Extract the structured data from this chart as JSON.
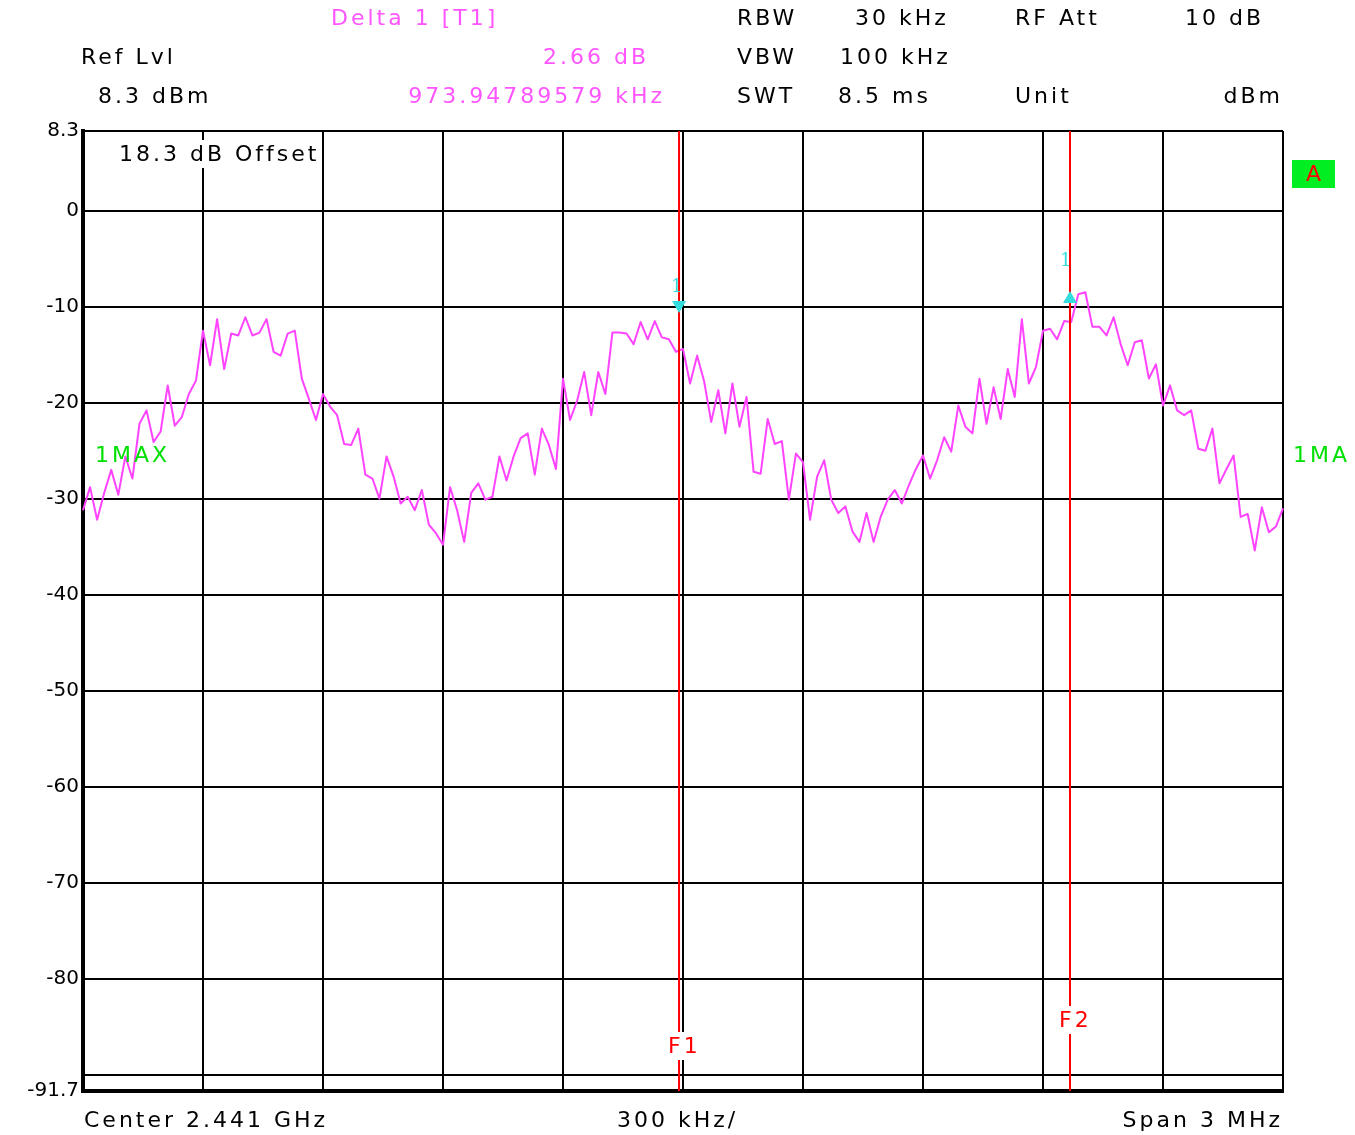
{
  "chart_data": {
    "type": "line",
    "categories": [
      null,
      null,
      null,
      null,
      null,
      null,
      null,
      null,
      null,
      null,
      null,
      null,
      null,
      null,
      null,
      null,
      null,
      null,
      null,
      null,
      null,
      null,
      null,
      null,
      null,
      null,
      null,
      null,
      null,
      null,
      null,
      null,
      null,
      null,
      null,
      null,
      null,
      null,
      null,
      null,
      null,
      null,
      null,
      null,
      null,
      null,
      null,
      null,
      null,
      null,
      null,
      null,
      null,
      null,
      null,
      null,
      null,
      null,
      null,
      null,
      null,
      null,
      null,
      null,
      null,
      null,
      null,
      null,
      null,
      null,
      null,
      null,
      null,
      null,
      null,
      null,
      null,
      null,
      null,
      null,
      null,
      null,
      null,
      null,
      null,
      null,
      null,
      null,
      null,
      null,
      null,
      null,
      null,
      null,
      null,
      null,
      null,
      null,
      null,
      null,
      null,
      null,
      null,
      null,
      null,
      null,
      null,
      null,
      null,
      null,
      null,
      null,
      null,
      null,
      null,
      null,
      null,
      null,
      null,
      null,
      null,
      null,
      null,
      null,
      null,
      null,
      null,
      null,
      null,
      null,
      null,
      null,
      null,
      null,
      null,
      null,
      null,
      null,
      null,
      null,
      null,
      null,
      null,
      null,
      null,
      null,
      null,
      null,
      null,
      null,
      null,
      null,
      null,
      null,
      null,
      null,
      null,
      null,
      null,
      null,
      null,
      null,
      null,
      null,
      null,
      null,
      null,
      null,
      null,
      null,
      null
    ],
    "series": [
      {
        "color": "#ff44ff",
        "values": [
          -31.2,
          -28.8,
          -32.2,
          -29.4,
          -27,
          -29.6,
          -25.6,
          -27.9,
          -22.2,
          -20.8,
          -24.1,
          -23,
          -18.2,
          -22.4,
          -21.5,
          -19.1,
          -17.7,
          -12.5,
          -16.1,
          -11.3,
          -16.5,
          -12.8,
          -13,
          -11.1,
          -13,
          -12.7,
          -11.3,
          -14.7,
          -15.1,
          -12.8,
          -12.5,
          -17.5,
          -19.6,
          -21.8,
          -19.1,
          -20.4,
          -21.3,
          -24.3,
          -24.4,
          -22.7,
          -27.5,
          -27.9,
          -30,
          -25.6,
          -27.7,
          -30.5,
          -29.8,
          -31.2,
          -29.1,
          -32.7,
          -33.6,
          -34.8,
          -28.8,
          -31.2,
          -34.5,
          -29.4,
          -28.4,
          -30.1,
          -29.8,
          -25.6,
          -28.1,
          -25.6,
          -23.7,
          -23.2,
          -27.5,
          -22.7,
          -24.4,
          -26.9,
          -17.5,
          -21.8,
          -19.8,
          -16.8,
          -21.3,
          -16.8,
          -19.1,
          -12.7,
          -12.7,
          -12.8,
          -13.9,
          -11.6,
          -13.4,
          -11.5,
          -13.2,
          -13.4,
          -14.7,
          -14.4,
          -18,
          -15.1,
          -17.8,
          -22,
          -18.7,
          -23.2,
          -18,
          -22.5,
          -19.4,
          -27.2,
          -27.4,
          -21.7,
          -24.3,
          -24,
          -30.1,
          -25.3,
          -26.2,
          -32.2,
          -27.7,
          -26,
          -30.1,
          -31.5,
          -30.8,
          -33.4,
          -34.5,
          -31.5,
          -34.5,
          -31.9,
          -30.1,
          -29.1,
          -30.5,
          -28.6,
          -26.9,
          -25.5,
          -27.9,
          -26,
          -23.6,
          -25.1,
          -20.3,
          -22.5,
          -23.2,
          -17.5,
          -22.2,
          -18.4,
          -21.7,
          -16.5,
          -19.4,
          -11.3,
          -18,
          -16.3,
          -12.5,
          -12.3,
          -13.4,
          -11.5,
          -11.6,
          -8.7,
          -8.5,
          -12.1,
          -12.1,
          -13,
          -11.1,
          -13.9,
          -16.1,
          -13.7,
          -13.5,
          -17.5,
          -16,
          -20.3,
          -18.2,
          -20.8,
          -21.3,
          -20.8,
          -24.8,
          -25,
          -22.7,
          -28.4,
          -26.9,
          -25.5,
          -31.9,
          -31.6,
          -35.4,
          -30.9,
          -33.5,
          -32.9,
          -31
        ]
      }
    ],
    "ylim": [
      -91.7,
      8.3
    ],
    "yticks": [
      8.3,
      0,
      -10,
      -20,
      -30,
      -40,
      -50,
      -60,
      -70,
      -80,
      {
        "value": -90,
        "label": null
      },
      -91.7
    ],
    "tick_labels": "y",
    "grid": true,
    "marker": "none",
    "line_style": "solid",
    "annotations": [
      "Delta 1 [T1]",
      "2.66 dB",
      "973.94789579 kHz",
      "Ref Lvl",
      "8.3 dBm",
      "RBW",
      "30 kHz",
      "VBW",
      "100 kHz",
      "SWT",
      "8.5 ms",
      "RF Att",
      "10 dB",
      "Unit",
      "dBm",
      "18.3 dB Offset",
      "1MAX",
      "1MA",
      "A",
      "Center 2.441 GHz",
      "300 kHz/",
      "Span 3 MHz",
      "F1",
      "F2",
      "1",
      "1"
    ]
  }
}
